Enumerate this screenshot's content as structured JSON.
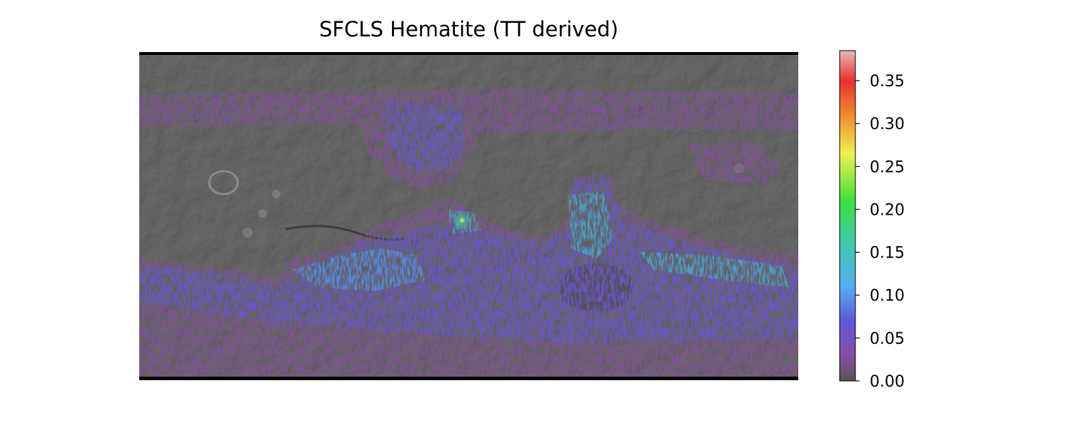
{
  "chart_data": {
    "type": "heatmap",
    "title": "SFCLS Hematite (TT derived)",
    "colorbar": {
      "range": [
        0.0,
        0.385
      ],
      "ticks": [
        "0.00",
        "0.05",
        "0.10",
        "0.15",
        "0.20",
        "0.25",
        "0.30",
        "0.35"
      ],
      "tick_values": [
        0.0,
        0.05,
        0.1,
        0.15,
        0.2,
        0.25,
        0.3,
        0.35
      ],
      "colormap_stops": [
        {
          "v": 0.0,
          "color": "#555555"
        },
        {
          "v": 0.03,
          "color": "#8a4aa8"
        },
        {
          "v": 0.07,
          "color": "#5a5ad8"
        },
        {
          "v": 0.11,
          "color": "#58aef0"
        },
        {
          "v": 0.16,
          "color": "#40c8b0"
        },
        {
          "v": 0.21,
          "color": "#3ee03e"
        },
        {
          "v": 0.265,
          "color": "#f0f050"
        },
        {
          "v": 0.31,
          "color": "#f08a30"
        },
        {
          "v": 0.35,
          "color": "#e83030"
        },
        {
          "v": 0.385,
          "color": "#e8b8b8"
        }
      ]
    },
    "basemap": "shaded-relief",
    "grid": false,
    "legend": "colorbar-right",
    "hotspot_value": 0.22
  }
}
